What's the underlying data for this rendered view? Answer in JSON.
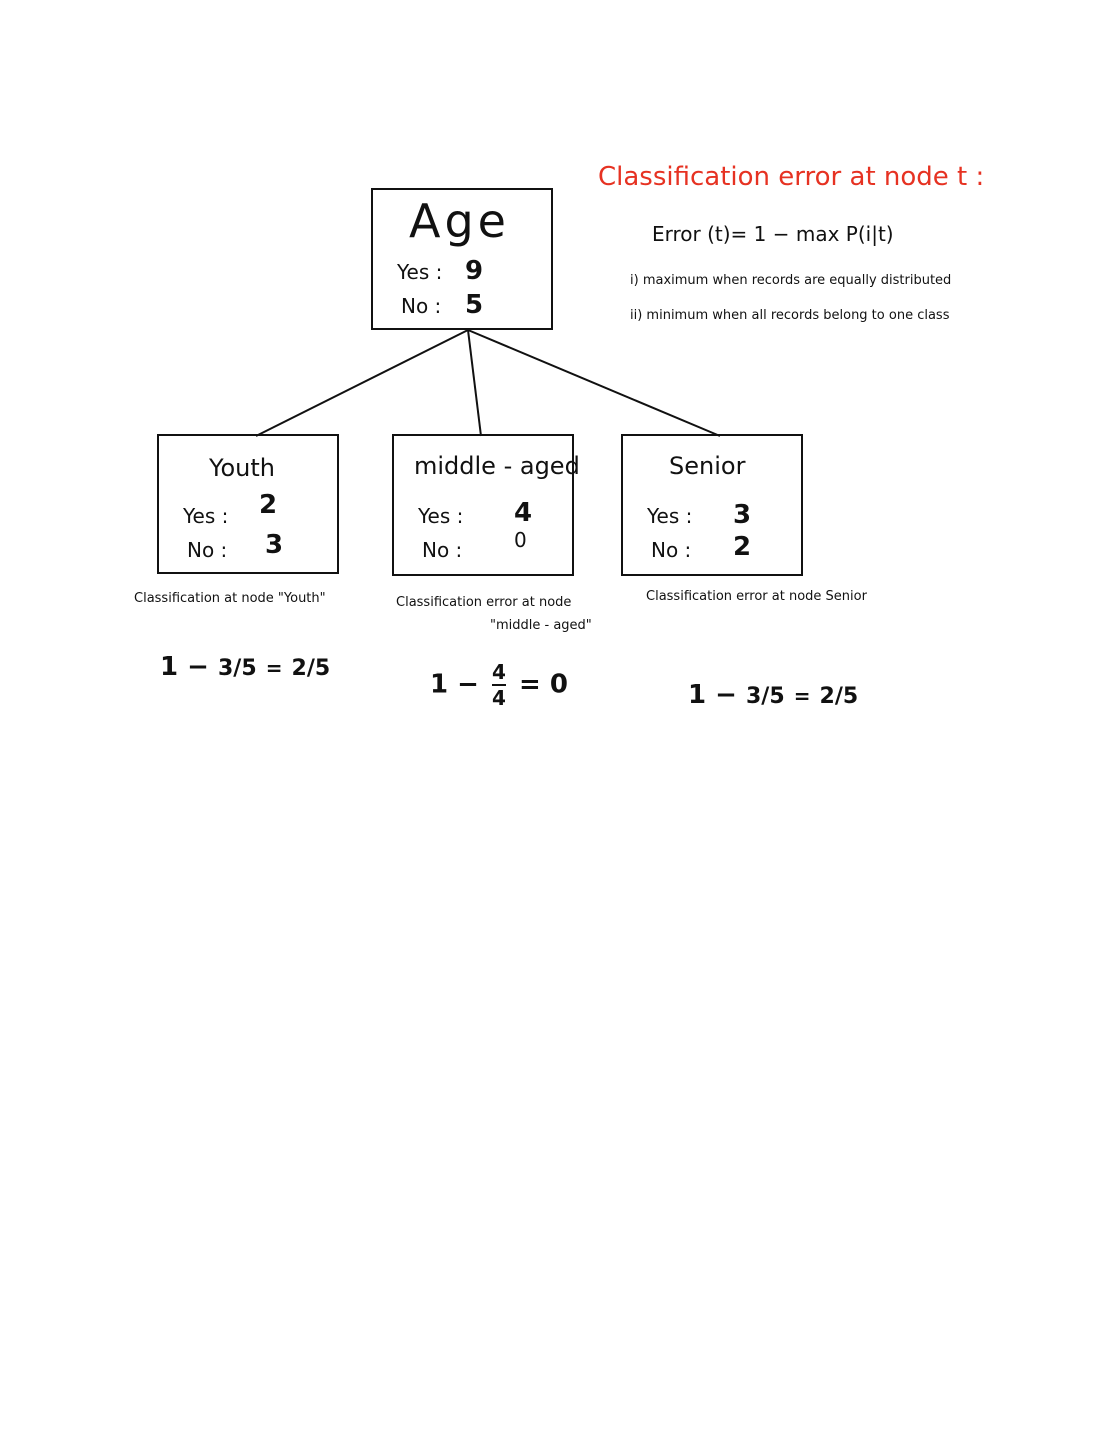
{
  "explanation": {
    "heading": "Classification error at node t :",
    "formula": "Error (t)= 1 − max P(i|t)",
    "notes": [
      "i) maximum when records are equally distributed",
      "ii) minimum when all records belong to one class"
    ],
    "color": "#e63222"
  },
  "root": {
    "title": "Age",
    "yes_label": "Yes :",
    "yes": "9",
    "no_label": "No :",
    "no": "5"
  },
  "children": [
    {
      "title": "Youth",
      "yes_label": "Yes :",
      "yes": "2",
      "no_label": "No :",
      "no": "3",
      "caption": "Classification at node \"Youth\"",
      "calc_prefix": "1 −",
      "calc_frac": "3/5",
      "calc_eq": "=",
      "calc_result": "2/5"
    },
    {
      "title": "middle - aged",
      "yes_label": "Yes :",
      "yes": "4",
      "no_label": "No :",
      "no": "0",
      "caption": "Classification error at node",
      "caption2": "\"middle - aged\"",
      "calc_prefix": "1 −",
      "calc_num": "4",
      "calc_den": "4",
      "calc_eq": "=",
      "calc_result": "0"
    },
    {
      "title": "Senior",
      "yes_label": "Yes :",
      "yes": "3",
      "no_label": "No :",
      "no": "2",
      "caption": "Classification error at node Senior",
      "calc_prefix": "1 −",
      "calc_frac": "3/5",
      "calc_eq": "=",
      "calc_result": "2/5"
    }
  ]
}
